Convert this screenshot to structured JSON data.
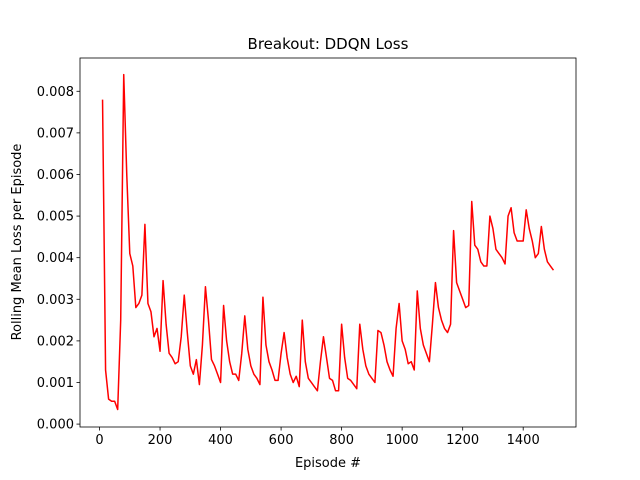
{
  "chart_data": {
    "type": "line",
    "title": "Breakout: DDQN Loss",
    "x_label": "Episode #",
    "y_label": "Rolling Mean Loss per Episode",
    "x": [
      10,
      20,
      30,
      40,
      50,
      60,
      70,
      80,
      90,
      100,
      110,
      120,
      130,
      140,
      150,
      160,
      170,
      180,
      190,
      200,
      210,
      220,
      230,
      240,
      250,
      260,
      270,
      280,
      290,
      300,
      310,
      320,
      330,
      340,
      350,
      360,
      370,
      380,
      390,
      400,
      410,
      420,
      430,
      440,
      450,
      460,
      470,
      480,
      490,
      500,
      510,
      520,
      530,
      540,
      550,
      560,
      570,
      580,
      590,
      600,
      610,
      620,
      630,
      640,
      650,
      660,
      670,
      680,
      690,
      700,
      710,
      720,
      730,
      740,
      750,
      760,
      770,
      780,
      790,
      800,
      810,
      820,
      830,
      840,
      850,
      860,
      870,
      880,
      890,
      900,
      910,
      920,
      930,
      940,
      950,
      960,
      970,
      980,
      990,
      1000,
      1010,
      1020,
      1030,
      1040,
      1050,
      1060,
      1070,
      1080,
      1090,
      1100,
      1110,
      1120,
      1130,
      1140,
      1150,
      1160,
      1170,
      1180,
      1190,
      1200,
      1210,
      1220,
      1230,
      1240,
      1250,
      1260,
      1270,
      1280,
      1290,
      1300,
      1310,
      1320,
      1330,
      1340,
      1350,
      1360,
      1370,
      1380,
      1390,
      1400,
      1410,
      1420,
      1430,
      1440,
      1450,
      1460,
      1470,
      1480,
      1490,
      1500
    ],
    "series": [
      {
        "name": "loss",
        "color": "#ff0000",
        "values": [
          0.0078,
          0.0013,
          0.0006,
          0.00055,
          0.00055,
          0.00035,
          0.0025,
          0.0084,
          0.006,
          0.0041,
          0.0038,
          0.0028,
          0.0029,
          0.0031,
          0.0048,
          0.0029,
          0.0027,
          0.0021,
          0.0023,
          0.00175,
          0.00345,
          0.0024,
          0.0017,
          0.0016,
          0.00145,
          0.0015,
          0.0021,
          0.0031,
          0.0022,
          0.0014,
          0.0012,
          0.00155,
          0.00095,
          0.0019,
          0.0033,
          0.0025,
          0.00155,
          0.0014,
          0.0012,
          0.001,
          0.00285,
          0.002,
          0.0015,
          0.0012,
          0.0012,
          0.00105,
          0.0017,
          0.0026,
          0.0018,
          0.0014,
          0.0012,
          0.0011,
          0.00095,
          0.00305,
          0.0019,
          0.0015,
          0.0013,
          0.00105,
          0.00105,
          0.0017,
          0.0022,
          0.0016,
          0.0012,
          0.001,
          0.00115,
          0.0009,
          0.0025,
          0.0015,
          0.0011,
          0.001,
          0.0009,
          0.0008,
          0.0015,
          0.0021,
          0.0016,
          0.0011,
          0.00105,
          0.0008,
          0.0008,
          0.0024,
          0.0016,
          0.0011,
          0.00105,
          0.00095,
          0.00085,
          0.0024,
          0.0018,
          0.0014,
          0.0012,
          0.0011,
          0.001,
          0.00225,
          0.0022,
          0.0019,
          0.0015,
          0.0013,
          0.00115,
          0.0023,
          0.0029,
          0.002,
          0.0018,
          0.00145,
          0.0015,
          0.0013,
          0.0032,
          0.0023,
          0.0019,
          0.0017,
          0.0015,
          0.0024,
          0.0034,
          0.0028,
          0.0025,
          0.0023,
          0.0022,
          0.0024,
          0.00465,
          0.0034,
          0.0032,
          0.003,
          0.0028,
          0.00285,
          0.00535,
          0.0043,
          0.0042,
          0.0039,
          0.0038,
          0.0038,
          0.005,
          0.0047,
          0.0042,
          0.0041,
          0.004,
          0.00385,
          0.005,
          0.0052,
          0.0046,
          0.0044,
          0.0044,
          0.0044,
          0.00515,
          0.0047,
          0.0044,
          0.004,
          0.0041,
          0.00475,
          0.0042,
          0.0039,
          0.0038,
          0.0037
        ]
      }
    ],
    "xlim": [
      -64.5,
      1574.5
    ],
    "ylim": [
      -7e-05,
      0.0088
    ],
    "xticks": [
      0,
      200,
      400,
      600,
      800,
      1000,
      1200,
      1400
    ],
    "yticks": [
      {
        "value": 0,
        "label": "0.000"
      },
      {
        "value": 0.001,
        "label": "0.001"
      },
      {
        "value": 0.002,
        "label": "0.002"
      },
      {
        "value": 0.003,
        "label": "0.003"
      },
      {
        "value": 0.004,
        "label": "0.004"
      },
      {
        "value": 0.005,
        "label": "0.005"
      },
      {
        "value": 0.006,
        "label": "0.006"
      },
      {
        "value": 0.007,
        "label": "0.007"
      },
      {
        "value": 0.008,
        "label": "0.008"
      }
    ],
    "grid": false
  }
}
